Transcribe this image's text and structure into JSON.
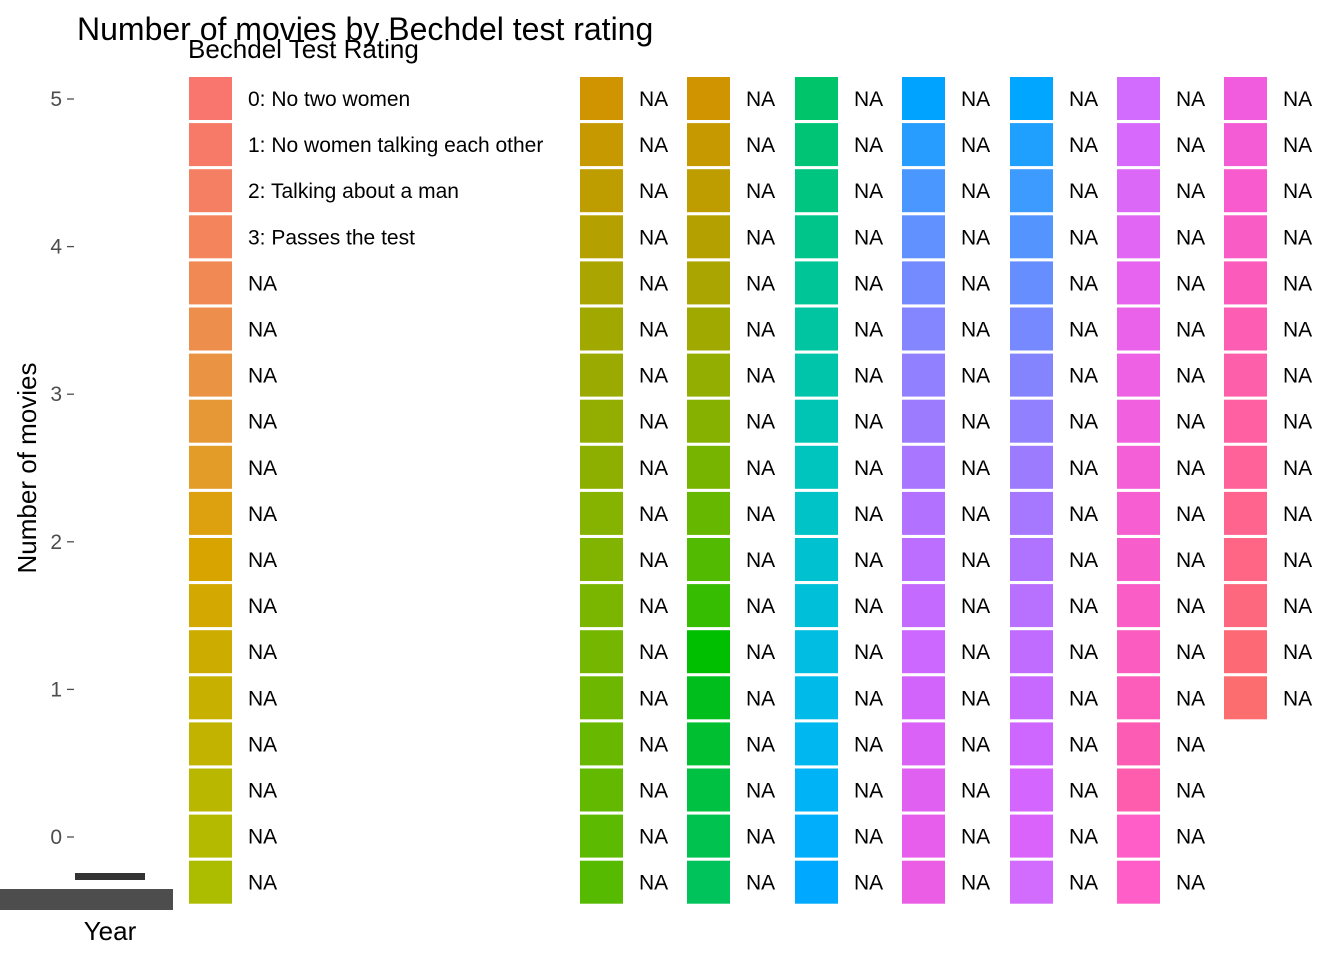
{
  "chart_data": {
    "type": "bar",
    "title": "Number of movies by Bechdel test rating",
    "xlabel": "Year",
    "ylabel": "Number of movies",
    "y_ticks": [
      "0",
      "1",
      "2",
      "3",
      "4",
      "5"
    ],
    "ylim": [
      0,
      5
    ],
    "grid": false,
    "legend": {
      "title": "Bechdel Test Rating",
      "placement": "overlapping plot area",
      "na_label": "NA",
      "labeled_entries": [
        "0: No two women",
        "1: No women talking each other",
        "2: Talking about a man",
        "3: Passes the test"
      ],
      "columns": [
        {
          "colors": [
            "#F8766D",
            "#F77A68",
            "#F57F63",
            "#F3845C",
            "#F08954",
            "#ED8E4C",
            "#EA9342",
            "#E69836",
            "#E29C27",
            "#DDA00F",
            "#D8A400",
            "#D3A800",
            "#CDAC00",
            "#C7B000",
            "#C1B300",
            "#BAB700",
            "#B3BA00",
            "#ACBD00"
          ]
        },
        {
          "colors": [
            "#CF9400",
            "#C69900",
            "#BD9D00",
            "#B4A100",
            "#AAA500",
            "#9FA900",
            "#93AD00",
            "#86B100",
            "#77B400",
            "#66B700",
            "#52BA00",
            "#36BC00",
            "#00BE00",
            "#00BF1D",
            "#00C031",
            "#00C141",
            "#00C24F",
            "#00C35C"
          ]
        },
        {
          "colors": [
            "#00C469",
            "#00C475",
            "#00C580",
            "#00C58B",
            "#00C596",
            "#00C5A0",
            "#00C5AA",
            "#00C4B4",
            "#00C4BE",
            "#00C3C7",
            "#00C1D0",
            "#00BFD9",
            "#00BDE1",
            "#00BAE9",
            "#00B7F0",
            "#00B3F6",
            "#00AEFB",
            "#00A9FF"
          ]
        },
        {
          "colors": [
            "#00A3FF",
            "#279DFF",
            "#4A97FF",
            "#6191FF",
            "#738BFF",
            "#8386FF",
            "#9180FF",
            "#9D7BFF",
            "#A876FF",
            "#B272FF",
            "#BB6EFF",
            "#C46AFF",
            "#CC67FF",
            "#D364FB",
            "#DA62F6",
            "#E060F1",
            "#E65EEB",
            "#EB5DE4"
          ]
        },
        {
          "colors": [
            "#F05CDD",
            "#F35CD5",
            "#F75BCD",
            "#F95CC5",
            "#FB5CBC",
            "#FD5DB3",
            "#FE5FAA",
            "#FF60A1",
            "#FF6298",
            "#FF648F",
            "#FF6686",
            "#FE687E",
            "#FD6A76",
            "#FB6D6E"
          ]
        }
      ],
      "single_columns": [
        {
          "color": "#7FB300"
        },
        {
          "color": "#00C16A"
        },
        {
          "color": "#00C2C8"
        },
        {
          "color": "#00A6FF"
        },
        {
          "color": "#D16CFF"
        },
        {
          "color": "#FF5DC7"
        }
      ]
    },
    "x_axis_ticks": []
  }
}
